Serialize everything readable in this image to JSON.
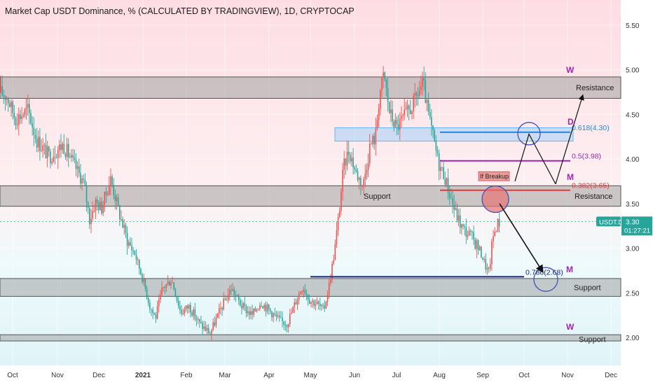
{
  "title": "Market Cap USDT Dominance, % (CALCULATED BY TRADINGVIEW), 1D, CRYPTOCAP",
  "colors": {
    "up": "#26a69a",
    "down": "#ef5350",
    "zone_gray": "#9a9a9a",
    "zone_blue": "#90caf9",
    "fib_blue": "#1e88e5",
    "fib_purple": "#9c27b0",
    "fib_red": "#e53935",
    "fib_navy": "#1a237e",
    "wave_label": "#9c27b0",
    "price_badge": "#26a69a"
  },
  "chart_data": {
    "type": "candlestick",
    "symbol": "USDT.D",
    "x_ticks": [
      "Oct",
      "Nov",
      "Dec",
      "2021",
      "Feb",
      "Mar",
      "Apr",
      "May",
      "Jun",
      "Jul",
      "Aug",
      "Sep",
      "Oct",
      "Nov",
      "Dec"
    ],
    "y_ticks": [
      "5.50",
      "5.00",
      "4.50",
      "4.00",
      "3.50",
      "3.00",
      "2.50",
      "2.00"
    ],
    "y_range": [
      1.55,
      5.85
    ],
    "last_price": "3.30",
    "countdown": "01:27:21",
    "price_path": [
      [
        0,
        4.75
      ],
      [
        10,
        4.7
      ],
      [
        22,
        4.45
      ],
      [
        40,
        4.55
      ],
      [
        52,
        4.22
      ],
      [
        70,
        4.03
      ],
      [
        90,
        4.16
      ],
      [
        105,
        3.95
      ],
      [
        120,
        3.72
      ],
      [
        128,
        3.32
      ],
      [
        136,
        3.52
      ],
      [
        145,
        3.45
      ],
      [
        158,
        3.78
      ],
      [
        170,
        3.4
      ],
      [
        182,
        3.08
      ],
      [
        192,
        2.95
      ],
      [
        204,
        2.65
      ],
      [
        214,
        2.35
      ],
      [
        222,
        2.22
      ],
      [
        232,
        2.55
      ],
      [
        245,
        2.65
      ],
      [
        258,
        2.28
      ],
      [
        270,
        2.35
      ],
      [
        285,
        2.15
      ],
      [
        300,
        2.05
      ],
      [
        315,
        2.32
      ],
      [
        330,
        2.55
      ],
      [
        345,
        2.35
      ],
      [
        360,
        2.25
      ],
      [
        372,
        2.4
      ],
      [
        385,
        2.3
      ],
      [
        400,
        2.18
      ],
      [
        410,
        2.16
      ],
      [
        422,
        2.4
      ],
      [
        432,
        2.58
      ],
      [
        442,
        2.42
      ],
      [
        452,
        2.38
      ],
      [
        462,
        2.3
      ],
      [
        470,
        2.6
      ],
      [
        478,
        3.0
      ],
      [
        484,
        3.4
      ],
      [
        490,
        3.9
      ],
      [
        498,
        4.1
      ],
      [
        508,
        3.85
      ],
      [
        518,
        3.7
      ],
      [
        528,
        4.15
      ],
      [
        536,
        4.25
      ],
      [
        542,
        4.75
      ],
      [
        548,
        4.95
      ],
      [
        556,
        4.52
      ],
      [
        566,
        4.35
      ],
      [
        575,
        4.45
      ],
      [
        585,
        4.55
      ],
      [
        592,
        4.65
      ],
      [
        597,
        4.75
      ],
      [
        604,
        4.85
      ],
      [
        610,
        4.55
      ],
      [
        618,
        4.25
      ],
      [
        626,
        3.95
      ],
      [
        634,
        3.82
      ],
      [
        642,
        3.6
      ],
      [
        650,
        3.4
      ],
      [
        660,
        3.22
      ],
      [
        670,
        3.15
      ],
      [
        680,
        3.05
      ],
      [
        688,
        2.92
      ],
      [
        694,
        2.78
      ],
      [
        698,
        2.72
      ],
      [
        703,
        3.1
      ],
      [
        708,
        3.25
      ],
      [
        713,
        3.3
      ]
    ],
    "zones": [
      {
        "type": "resistance",
        "from": 4.68,
        "to": 4.92,
        "label": "Resistance"
      },
      {
        "type": "support_resistance",
        "from": 3.47,
        "to": 3.7,
        "labels": [
          "Support",
          "Resistance"
        ]
      },
      {
        "type": "support",
        "from": 2.46,
        "to": 2.66,
        "label": "Support"
      },
      {
        "type": "support",
        "from": 1.96,
        "to": 2.03,
        "label": "Support"
      },
      {
        "type": "demand",
        "from": 4.2,
        "to": 4.35
      }
    ],
    "fib_levels": [
      {
        "ratio": "0.618",
        "value": 4.3,
        "label": "0.618(4.30)"
      },
      {
        "ratio": "0.5",
        "value": 3.98,
        "label": "0.5(3.98)"
      },
      {
        "ratio": "0.382",
        "value": 3.65,
        "label": "0.382(3.65)"
      },
      {
        "ratio": "0.786",
        "value": 2.68,
        "label": "0.786(2.68)"
      }
    ],
    "wave_labels": [
      "W",
      "D",
      "M",
      "M",
      "W"
    ],
    "annotations": [
      "If Breakup"
    ]
  }
}
